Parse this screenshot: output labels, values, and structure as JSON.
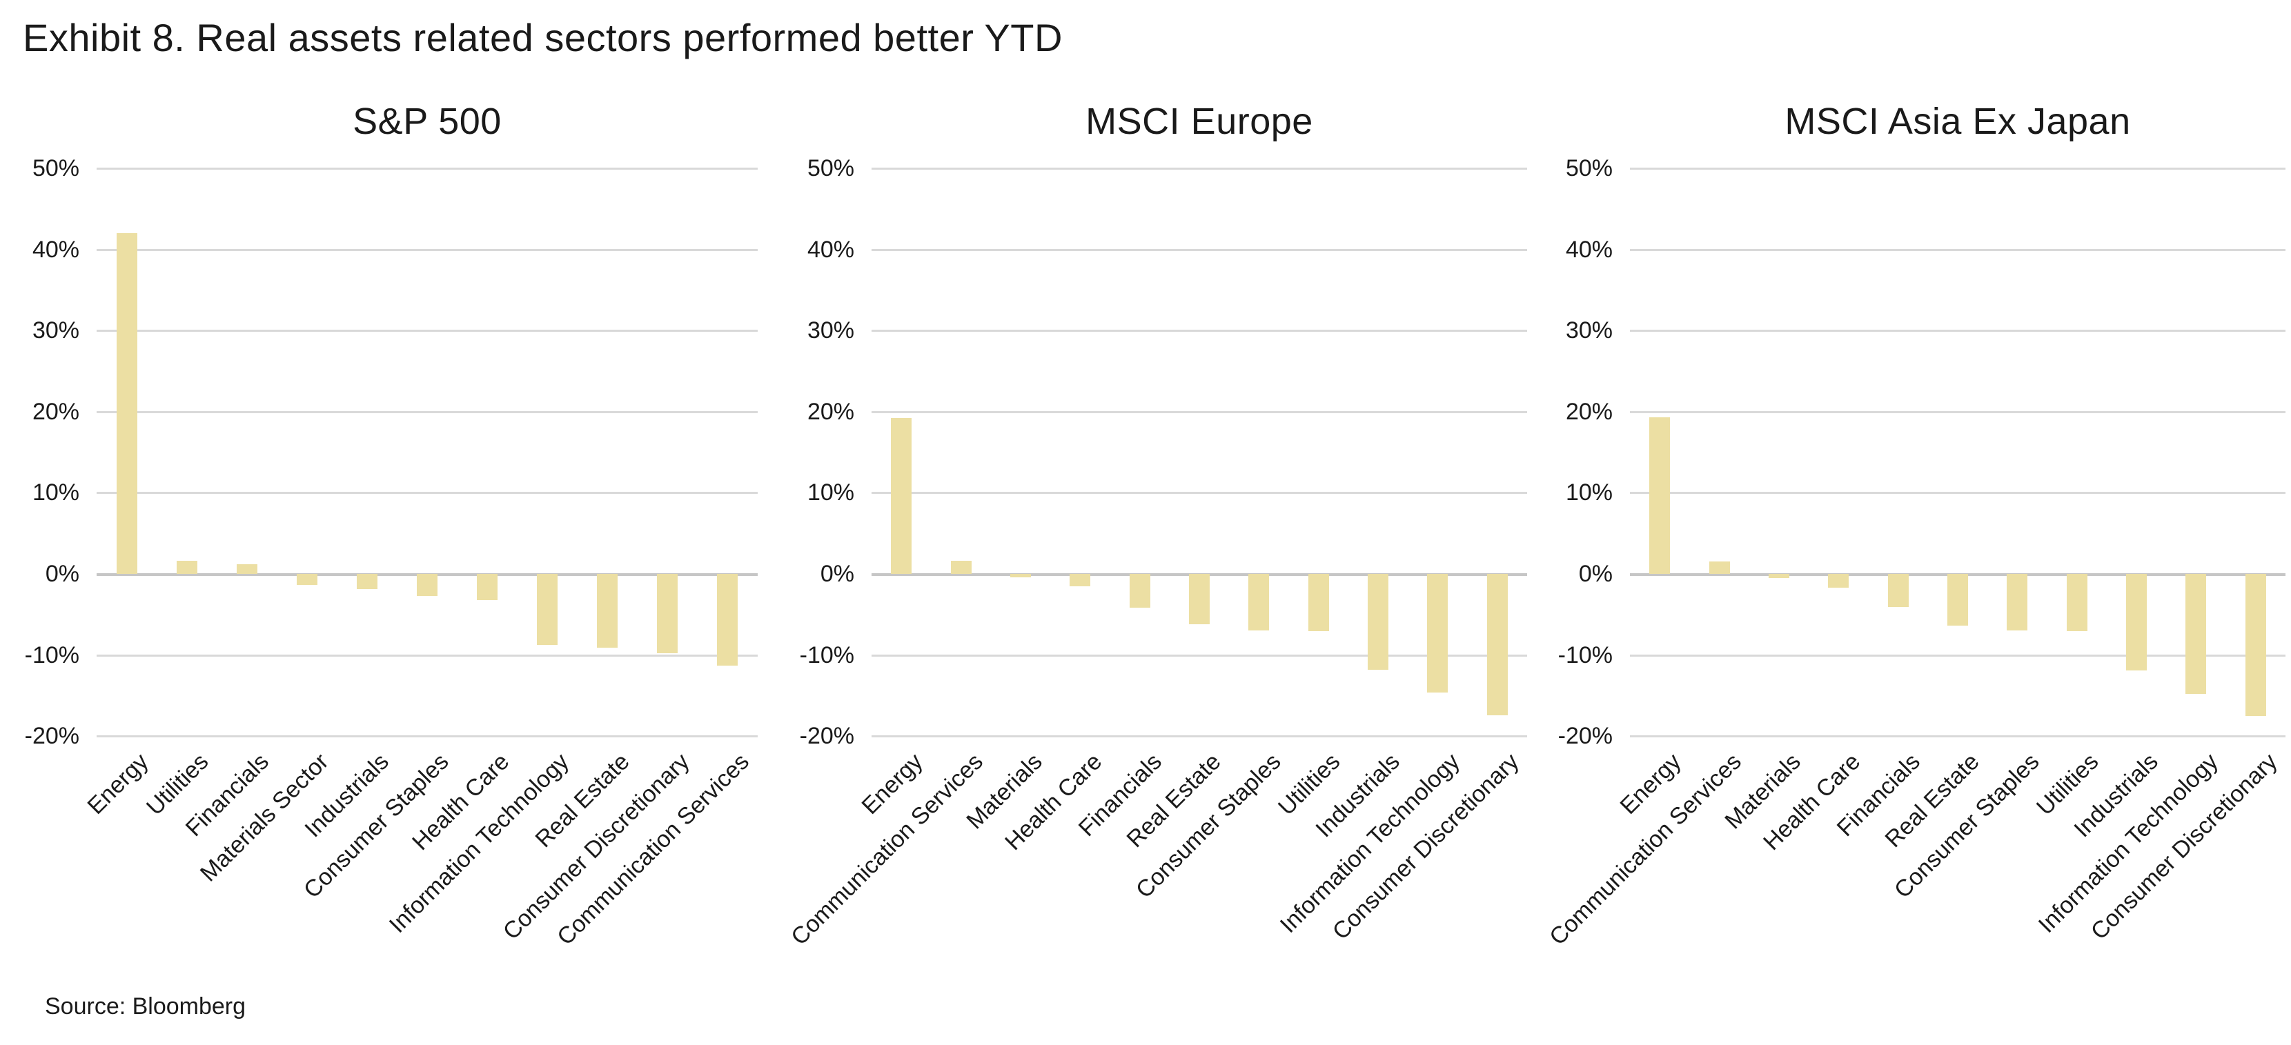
{
  "title": "Exhibit 8. Real assets related sectors performed better YTD",
  "source": "Source: Bloomberg",
  "colors": {
    "bar_fill": "#ECDFA3",
    "gridline": "#D9D9D9",
    "zero_line": "#C6C6C6",
    "text": "#1A1A1A",
    "background": "#FFFFFF"
  },
  "y_axis": {
    "tick_labels": [
      "50%",
      "40%",
      "30%",
      "20%",
      "10%",
      "0%",
      "-10%",
      "-20%"
    ],
    "tick_values": [
      50,
      40,
      30,
      20,
      10,
      0,
      -10,
      -20
    ],
    "max": 50,
    "min": -20,
    "step": 10,
    "grid": "horizontal"
  },
  "chart_data": [
    {
      "type": "bar",
      "title": "S&P 500",
      "ylabel": "",
      "xlabel": "",
      "ylim": [
        -20,
        50
      ],
      "categories": [
        "Energy",
        "Utilities",
        "Financials",
        "Materials Sector",
        "Industrials",
        "Consumer Staples",
        "Health Care",
        "Information Technology",
        "Real Estate",
        "Consumer Discretionary",
        "Communication Services"
      ],
      "values": [
        42.0,
        1.6,
        1.2,
        -1.4,
        -1.9,
        -2.7,
        -3.2,
        -8.8,
        -9.1,
        -9.8,
        -11.3
      ]
    },
    {
      "type": "bar",
      "title": "MSCI Europe",
      "ylabel": "",
      "xlabel": "",
      "ylim": [
        -20,
        50
      ],
      "categories": [
        "Energy",
        "Communication Services",
        "Materials",
        "Health Care",
        "Financials",
        "Real Estate",
        "Consumer Staples",
        "Utilities",
        "Industrials",
        "Information Technology",
        "Consumer Discretionary"
      ],
      "values": [
        19.2,
        1.6,
        -0.4,
        -1.5,
        -4.2,
        -6.2,
        -7.0,
        -7.1,
        -11.8,
        -14.6,
        -17.4
      ]
    },
    {
      "type": "bar",
      "title": "MSCI Asia Ex Japan",
      "ylabel": "",
      "xlabel": "",
      "ylim": [
        -20,
        50
      ],
      "categories": [
        "Energy",
        "Communication Services",
        "Materials",
        "Health Care",
        "Financials",
        "Real Estate",
        "Consumer Staples",
        "Utilities",
        "Industrials",
        "Information Technology",
        "Consumer Discretionary"
      ],
      "values": [
        19.3,
        1.5,
        -0.5,
        -1.7,
        -4.1,
        -6.4,
        -7.0,
        -7.1,
        -11.9,
        -14.8,
        -17.5
      ]
    }
  ]
}
